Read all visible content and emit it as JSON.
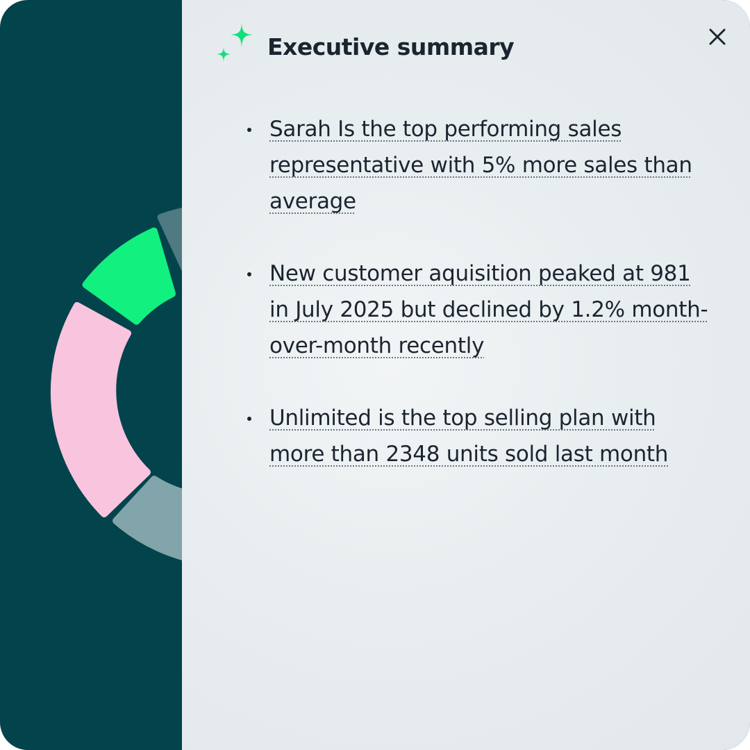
{
  "header": {
    "title": "Executive summary"
  },
  "bullets": [
    "Sarah Is the top performing sales representative with 5% more sales than average",
    "New customer aquisition peaked at 981 in July 2025 but declined by 1.2% month-over-month recently",
    "Unlimited is the top selling plan with more than 2348 units sold last month"
  ]
}
